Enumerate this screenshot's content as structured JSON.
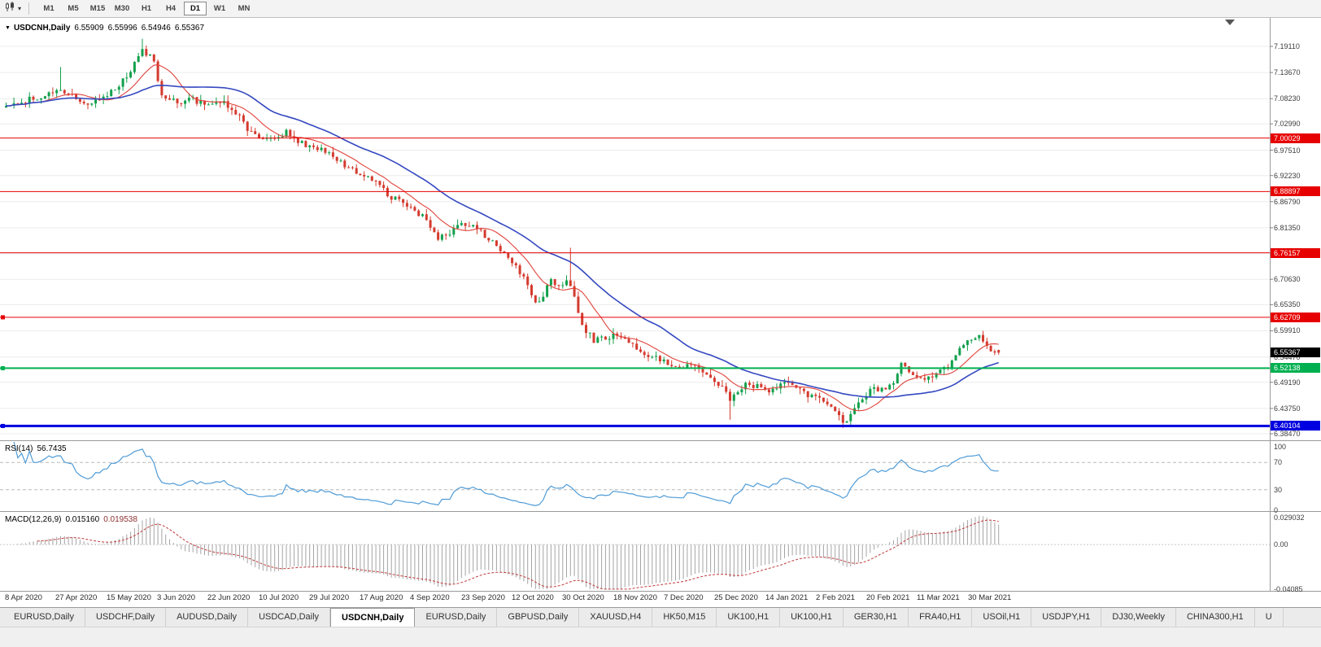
{
  "toolbar": {
    "timeframes": [
      {
        "label": "M1",
        "active": false
      },
      {
        "label": "M5",
        "active": false
      },
      {
        "label": "M15",
        "active": false
      },
      {
        "label": "M30",
        "active": false
      },
      {
        "label": "H1",
        "active": false
      },
      {
        "label": "H4",
        "active": false
      },
      {
        "label": "D1",
        "active": true
      },
      {
        "label": "W1",
        "active": false
      },
      {
        "label": "MN",
        "active": false
      }
    ]
  },
  "chart": {
    "symbol_period": "USDCNH,Daily",
    "open": "6.55909",
    "high": "6.55996",
    "low": "6.54946",
    "close": "6.55367",
    "price_axis": [
      "7.19110",
      "7.13670",
      "7.08230",
      "7.02990",
      "6.97510",
      "6.92230",
      "6.86790",
      "6.81350",
      "6.75910",
      "6.70630",
      "6.65350",
      "6.59910",
      "6.54470",
      "6.49190",
      "6.43750",
      "6.38470"
    ],
    "hlines": [
      {
        "price": 7.00029,
        "label": "7.00029",
        "color": "#e60000",
        "width": 1,
        "handle": false
      },
      {
        "price": 6.88897,
        "label": "6.88897",
        "color": "#e60000",
        "width": 1,
        "handle": false
      },
      {
        "price": 6.76157,
        "label": "6.76157",
        "color": "#e60000",
        "width": 1,
        "handle": false
      },
      {
        "price": 6.62709,
        "label": "6.62709",
        "color": "#e60000",
        "width": 1,
        "handle": true
      },
      {
        "price": 6.52138,
        "label": "6.52138",
        "color": "#00b050",
        "width": 2,
        "handle": true
      },
      {
        "price": 6.40104,
        "label": "6.40104",
        "color": "#0000e0",
        "width": 3,
        "handle": true
      }
    ],
    "current_price": {
      "value": 6.55367,
      "label": "6.55367",
      "bg": "#000000"
    },
    "dates": [
      "8 Apr 2020",
      "27 Apr 2020",
      "15 May 2020",
      "3 Jun 2020",
      "22 Jun 2020",
      "10 Jul 2020",
      "29 Jul 2020",
      "17 Aug 2020",
      "4 Sep 2020",
      "23 Sep 2020",
      "12 Oct 2020",
      "30 Oct 2020",
      "18 Nov 2020",
      "7 Dec 2020",
      "25 Dec 2020",
      "14 Jan 2021",
      "2 Feb 2021",
      "20 Feb 2021",
      "11 Mar 2021",
      "30 Mar 2021"
    ]
  },
  "rsi": {
    "name": "RSI(14)",
    "value": "56.7435",
    "ticks": [
      "100",
      "70",
      "30",
      "0"
    ],
    "levels": [
      70,
      30
    ]
  },
  "macd": {
    "name": "MACD(12,26,9)",
    "value_main": "0.015160",
    "value_signal": "0.019538",
    "ticks": [
      {
        "label": "0.029032",
        "v": 0.029032
      },
      {
        "label": "0.00",
        "v": 0
      },
      {
        "label": "-0.04085",
        "v": -0.04085
      }
    ]
  },
  "tabs": [
    {
      "label": "EURUSD,Daily",
      "active": false
    },
    {
      "label": "USDCHF,Daily",
      "active": false
    },
    {
      "label": "AUDUSD,Daily",
      "active": false
    },
    {
      "label": "USDCAD,Daily",
      "active": false
    },
    {
      "label": "USDCNH,Daily",
      "active": true
    },
    {
      "label": "EURUSD,Daily",
      "active": false
    },
    {
      "label": "GBPUSD,Daily",
      "active": false
    },
    {
      "label": "XAUUSD,H4",
      "active": false
    },
    {
      "label": "HK50,M15",
      "active": false
    },
    {
      "label": "UK100,H1",
      "active": false
    },
    {
      "label": "UK100,H1",
      "active": false
    },
    {
      "label": "GER30,H1",
      "active": false
    },
    {
      "label": "FRA40,H1",
      "active": false
    },
    {
      "label": "USOil,H1",
      "active": false
    },
    {
      "label": "USDJPY,H1",
      "active": false
    },
    {
      "label": "DJ30,Weekly",
      "active": false
    },
    {
      "label": "CHINA300,H1",
      "active": false
    },
    {
      "label": "U",
      "active": false
    }
  ],
  "colors": {
    "bull": "#12a04c",
    "bear": "#d43b2f",
    "ma_fast": "#e0433a",
    "ma_slow": "#3448c0",
    "rsi": "#4f9bd6",
    "macd_hist": "#a4a4a4",
    "macd_signal": "#c03a3a"
  },
  "chart_data": {
    "type": "candlestick",
    "symbol": "USDCNH",
    "period": "Daily",
    "title": "USDCNH,Daily",
    "ohlc_current": {
      "o": 6.55909,
      "h": 6.55996,
      "l": 6.54946,
      "c": 6.55367
    },
    "y_axis_ticks": [
      7.1911,
      7.1367,
      7.0823,
      7.0299,
      6.9751,
      6.9223,
      6.8679,
      6.8135,
      6.7591,
      6.7063,
      6.6535,
      6.5991,
      6.5447,
      6.4919,
      6.4375,
      6.3847
    ],
    "y_range": {
      "top": 7.2504,
      "bottom": 6.3711
    },
    "x_labels": [
      "8 Apr 2020",
      "27 Apr 2020",
      "15 May 2020",
      "3 Jun 2020",
      "22 Jun 2020",
      "10 Jul 2020",
      "29 Jul 2020",
      "17 Aug 2020",
      "4 Sep 2020",
      "23 Sep 2020",
      "12 Oct 2020",
      "30 Oct 2020",
      "18 Nov 2020",
      "7 Dec 2020",
      "25 Dec 2020",
      "14 Jan 2021",
      "2 Feb 2021",
      "20 Feb 2021",
      "11 Mar 2021",
      "30 Mar 2021"
    ],
    "horizontal_levels": [
      7.00029,
      6.88897,
      6.76157,
      6.62709,
      6.52138,
      6.40104
    ],
    "bars_visible": 256,
    "close_anchors": [
      [
        0,
        7.065
      ],
      [
        8,
        7.085
      ],
      [
        14,
        7.105
      ],
      [
        17,
        7.085
      ],
      [
        20,
        7.07
      ],
      [
        27,
        7.095
      ],
      [
        31,
        7.13
      ],
      [
        35,
        7.185
      ],
      [
        38,
        7.16
      ],
      [
        40,
        7.09
      ],
      [
        44,
        7.075
      ],
      [
        48,
        7.08
      ],
      [
        52,
        7.065
      ],
      [
        56,
        7.072
      ],
      [
        60,
        7.05
      ],
      [
        62,
        7.015
      ],
      [
        66,
        6.995
      ],
      [
        70,
        7.005
      ],
      [
        72,
        7.012
      ],
      [
        76,
        6.99
      ],
      [
        79,
        6.978
      ],
      [
        83,
        6.972
      ],
      [
        86,
        6.95
      ],
      [
        90,
        6.932
      ],
      [
        92,
        6.922
      ],
      [
        96,
        6.9
      ],
      [
        99,
        6.878
      ],
      [
        103,
        6.862
      ],
      [
        105,
        6.846
      ],
      [
        108,
        6.832
      ],
      [
        111,
        6.792
      ],
      [
        114,
        6.8
      ],
      [
        117,
        6.822
      ],
      [
        121,
        6.815
      ],
      [
        124,
        6.79
      ],
      [
        127,
        6.768
      ],
      [
        130,
        6.74
      ],
      [
        133,
        6.708
      ],
      [
        136,
        6.658
      ],
      [
        138,
        6.672
      ],
      [
        140,
        6.705
      ],
      [
        142,
        6.695
      ],
      [
        144,
        6.7
      ],
      [
        146,
        6.672
      ],
      [
        147,
        6.632
      ],
      [
        149,
        6.6
      ],
      [
        151,
        6.578
      ],
      [
        154,
        6.585
      ],
      [
        156,
        6.592
      ],
      [
        158,
        6.58
      ],
      [
        160,
        6.576
      ],
      [
        163,
        6.558
      ],
      [
        165,
        6.546
      ],
      [
        168,
        6.538
      ],
      [
        171,
        6.532
      ],
      [
        174,
        6.527
      ],
      [
        177,
        6.526
      ],
      [
        180,
        6.508
      ],
      [
        183,
        6.49
      ],
      [
        186,
        6.457
      ],
      [
        188,
        6.475
      ],
      [
        190,
        6.49
      ],
      [
        193,
        6.482
      ],
      [
        196,
        6.476
      ],
      [
        199,
        6.486
      ],
      [
        201,
        6.49
      ],
      [
        204,
        6.478
      ],
      [
        206,
        6.466
      ],
      [
        209,
        6.458
      ],
      [
        211,
        6.45
      ],
      [
        213,
        6.432
      ],
      [
        215,
        6.412
      ],
      [
        217,
        6.422
      ],
      [
        219,
        6.445
      ],
      [
        222,
        6.475
      ],
      [
        225,
        6.48
      ],
      [
        227,
        6.482
      ],
      [
        229,
        6.51
      ],
      [
        230,
        6.53
      ],
      [
        232,
        6.508
      ],
      [
        234,
        6.498
      ],
      [
        236,
        6.502
      ],
      [
        238,
        6.506
      ],
      [
        240,
        6.514
      ],
      [
        242,
        6.526
      ],
      [
        244,
        6.552
      ],
      [
        246,
        6.576
      ],
      [
        248,
        6.582
      ],
      [
        250,
        6.585
      ],
      [
        252,
        6.572
      ],
      [
        253,
        6.562
      ],
      [
        254,
        6.558
      ],
      [
        255,
        6.5537
      ]
    ],
    "wick_events": [
      [
        14,
        "high",
        7.148
      ],
      [
        35,
        "high",
        7.207
      ],
      [
        145,
        "high",
        6.772
      ],
      [
        186,
        "low",
        6.414
      ],
      [
        215,
        "low",
        6.397
      ]
    ],
    "last_candle": {
      "o": 6.55909,
      "h": 6.55996,
      "l": 6.54946,
      "c": 6.55367
    },
    "indicators": [
      {
        "name": "MA fast",
        "style": "red solid"
      },
      {
        "name": "MA slow",
        "style": "blue solid"
      },
      {
        "name": "RSI(14)",
        "value": 56.7435,
        "panel_range": [
          0,
          100
        ],
        "levels": [
          70,
          30
        ]
      },
      {
        "name": "MACD(12,26,9)",
        "main": 0.01516,
        "signal": 0.019538,
        "panel_range": [
          -0.04085,
          0.029032
        ]
      }
    ]
  }
}
